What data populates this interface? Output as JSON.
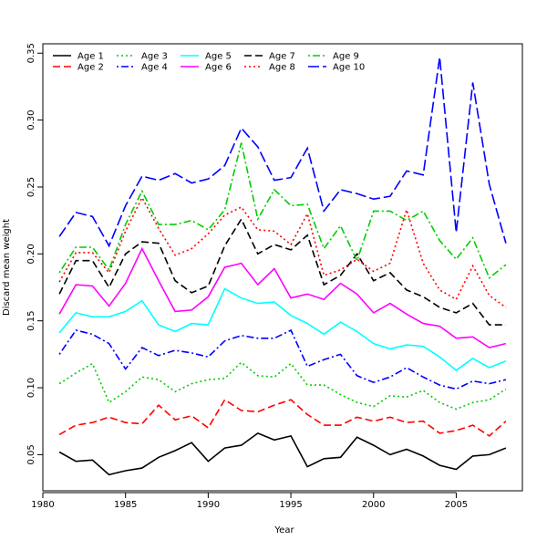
{
  "chart_data": {
    "type": "line",
    "title": "",
    "xlabel": "Year",
    "ylabel": "Discard mean weight",
    "xlim": [
      1980,
      2009
    ],
    "ylim": [
      0.023,
      0.357
    ],
    "xticks": [
      1980,
      1985,
      1990,
      1995,
      2000,
      2005
    ],
    "yticks": [
      0.05,
      0.1,
      0.15,
      0.2,
      0.25,
      0.3,
      0.35
    ],
    "ytick_labels": [
      "0.05",
      "0.10",
      "0.15",
      "0.20",
      "0.25",
      "0.30",
      "0.35"
    ],
    "grid": false,
    "legend_position": "top-left",
    "x": [
      1981,
      1982,
      1983,
      1984,
      1985,
      1986,
      1987,
      1988,
      1989,
      1990,
      1991,
      1992,
      1993,
      1994,
      1995,
      1996,
      1997,
      1998,
      1999,
      2000,
      2001,
      2002,
      2003,
      2004,
      2005,
      2006,
      2007,
      2008
    ],
    "series": [
      {
        "name": "Age 1",
        "color": "#000000",
        "dash": "solid",
        "values": [
          0.052,
          0.045,
          0.046,
          0.035,
          0.038,
          0.04,
          0.048,
          0.053,
          0.059,
          0.045,
          0.055,
          0.057,
          0.066,
          0.061,
          0.064,
          0.041,
          0.047,
          0.048,
          0.063,
          0.057,
          0.05,
          0.054,
          0.049,
          0.042,
          0.039,
          0.049,
          0.05,
          0.055
        ]
      },
      {
        "name": "Age 2",
        "color": "#ff0000",
        "dash": "dashed",
        "values": [
          0.065,
          0.072,
          0.074,
          0.078,
          0.074,
          0.073,
          0.087,
          0.076,
          0.079,
          0.07,
          0.091,
          0.083,
          0.082,
          0.087,
          0.091,
          0.08,
          0.072,
          0.072,
          0.078,
          0.075,
          0.078,
          0.074,
          0.075,
          0.066,
          0.068,
          0.072,
          0.064,
          0.075
        ]
      },
      {
        "name": "Age 3",
        "color": "#00cd00",
        "dash": "dotted",
        "values": [
          0.103,
          0.111,
          0.118,
          0.089,
          0.097,
          0.108,
          0.106,
          0.097,
          0.103,
          0.106,
          0.107,
          0.119,
          0.109,
          0.108,
          0.118,
          0.102,
          0.102,
          0.095,
          0.089,
          0.086,
          0.094,
          0.093,
          0.098,
          0.089,
          0.084,
          0.089,
          0.091,
          0.099
        ]
      },
      {
        "name": "Age 4",
        "color": "#0000ff",
        "dash": "dotdash",
        "values": [
          0.125,
          0.143,
          0.14,
          0.133,
          0.114,
          0.13,
          0.124,
          0.128,
          0.126,
          0.123,
          0.135,
          0.139,
          0.137,
          0.137,
          0.143,
          0.116,
          0.121,
          0.125,
          0.109,
          0.104,
          0.108,
          0.115,
          0.108,
          0.102,
          0.099,
          0.105,
          0.103,
          0.106
        ]
      },
      {
        "name": "Age 5",
        "color": "#00ffff",
        "dash": "solid",
        "values": [
          0.141,
          0.156,
          0.153,
          0.153,
          0.157,
          0.165,
          0.147,
          0.142,
          0.148,
          0.147,
          0.174,
          0.167,
          0.163,
          0.164,
          0.154,
          0.148,
          0.14,
          0.149,
          0.142,
          0.133,
          0.129,
          0.132,
          0.131,
          0.123,
          0.113,
          0.122,
          0.115,
          0.12
        ]
      },
      {
        "name": "Age 6",
        "color": "#ff00ff",
        "dash": "solid",
        "values": [
          0.155,
          0.177,
          0.176,
          0.161,
          0.178,
          0.204,
          0.18,
          0.157,
          0.158,
          0.168,
          0.19,
          0.193,
          0.177,
          0.189,
          0.167,
          0.17,
          0.166,
          0.178,
          0.17,
          0.156,
          0.163,
          0.155,
          0.148,
          0.146,
          0.137,
          0.138,
          0.13,
          0.133
        ]
      },
      {
        "name": "Age 7",
        "color": "#000000",
        "dash": "dashed",
        "values": [
          0.17,
          0.195,
          0.195,
          0.175,
          0.2,
          0.209,
          0.208,
          0.18,
          0.171,
          0.176,
          0.206,
          0.226,
          0.2,
          0.207,
          0.203,
          0.214,
          0.177,
          0.184,
          0.2,
          0.18,
          0.186,
          0.173,
          0.168,
          0.16,
          0.156,
          0.163,
          0.147,
          0.147
        ]
      },
      {
        "name": "Age 8",
        "color": "#ff0000",
        "dash": "dotted",
        "values": [
          0.179,
          0.201,
          0.201,
          0.186,
          0.217,
          0.242,
          0.219,
          0.199,
          0.204,
          0.215,
          0.229,
          0.235,
          0.218,
          0.217,
          0.207,
          0.23,
          0.184,
          0.188,
          0.196,
          0.187,
          0.193,
          0.233,
          0.193,
          0.173,
          0.166,
          0.191,
          0.169,
          0.16
        ]
      },
      {
        "name": "Age 9",
        "color": "#00cd00",
        "dash": "dotdash",
        "values": [
          0.186,
          0.205,
          0.205,
          0.188,
          0.222,
          0.247,
          0.222,
          0.222,
          0.225,
          0.218,
          0.233,
          0.283,
          0.226,
          0.248,
          0.236,
          0.237,
          0.204,
          0.221,
          0.195,
          0.232,
          0.232,
          0.225,
          0.232,
          0.21,
          0.196,
          0.212,
          0.182,
          0.192
        ]
      },
      {
        "name": "Age 10",
        "color": "#0000ff",
        "dash": "longdash",
        "values": [
          0.213,
          0.231,
          0.228,
          0.206,
          0.236,
          0.258,
          0.255,
          0.26,
          0.253,
          0.256,
          0.266,
          0.294,
          0.28,
          0.255,
          0.257,
          0.279,
          0.232,
          0.248,
          0.245,
          0.241,
          0.243,
          0.262,
          0.259,
          0.347,
          0.216,
          0.328,
          0.252,
          0.208
        ]
      }
    ]
  }
}
